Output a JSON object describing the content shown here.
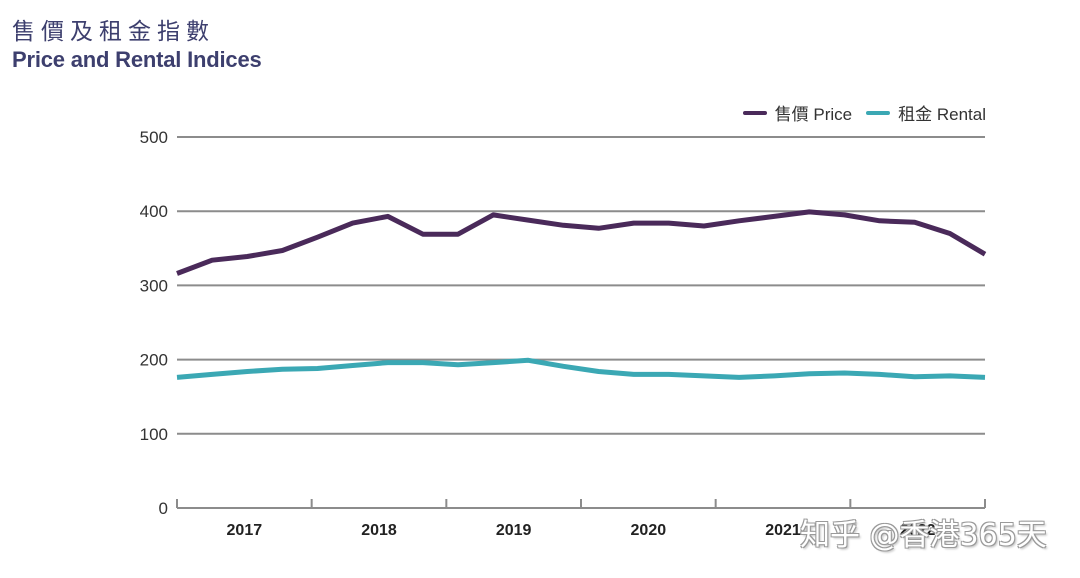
{
  "title": {
    "zh": "售價及租金指數",
    "en": "Price and Rental Indices"
  },
  "legend": [
    {
      "label": "售價 Price",
      "color": "#4a2a5a"
    },
    {
      "label": "租金 Rental",
      "color": "#3ba8b4"
    }
  ],
  "watermark": "知乎 @香港365天",
  "chart_data": {
    "type": "line",
    "title": "Price and Rental Indices",
    "xlabel": "",
    "ylabel": "",
    "ylim": [
      0,
      500
    ],
    "yticks": [
      0,
      100,
      200,
      300,
      400,
      500
    ],
    "grid": true,
    "legend_position": "top-right",
    "x_periods": [
      "2017",
      "2018",
      "2019",
      "2020",
      "2021",
      "2022"
    ],
    "points_per_period": 4,
    "x": [
      "2017Q1",
      "2017Q2",
      "2017Q3",
      "2017Q4",
      "2018Q1",
      "2018Q2",
      "2018Q3",
      "2018Q4",
      "2019Q1",
      "2019Q2",
      "2019Q3",
      "2019Q4",
      "2020Q1",
      "2020Q2",
      "2020Q3",
      "2020Q4",
      "2021Q1",
      "2021Q2",
      "2021Q3",
      "2021Q4",
      "2022Q1",
      "2022Q2",
      "2022Q3",
      "2022Q4"
    ],
    "series": [
      {
        "name": "售價 Price",
        "color": "#4a2a5a",
        "values": [
          316,
          334,
          339,
          347,
          365,
          384,
          393,
          369,
          369,
          395,
          388,
          381,
          377,
          384,
          384,
          380,
          387,
          393,
          399,
          395,
          387,
          385,
          370,
          342
        ]
      },
      {
        "name": "租金 Rental",
        "color": "#3ba8b4",
        "values": [
          176,
          180,
          184,
          187,
          188,
          192,
          196,
          196,
          193,
          196,
          199,
          191,
          184,
          180,
          180,
          178,
          176,
          178,
          181,
          182,
          180,
          177,
          178,
          176
        ]
      }
    ]
  }
}
